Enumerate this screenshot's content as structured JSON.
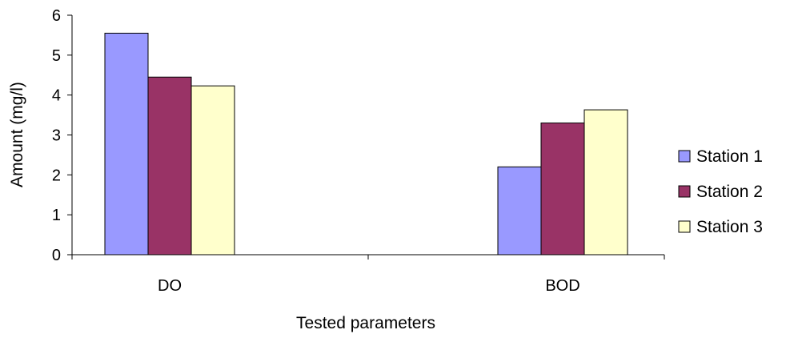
{
  "chart_data": {
    "type": "bar",
    "categories": [
      "DO",
      "BOD"
    ],
    "series": [
      {
        "name": "Station 1",
        "values": [
          5.55,
          2.2
        ],
        "color": "#9999ff"
      },
      {
        "name": "Station 2",
        "values": [
          4.45,
          3.3
        ],
        "color": "#993366"
      },
      {
        "name": "Station 3",
        "values": [
          4.23,
          3.63
        ],
        "color": "#ffffcc"
      }
    ],
    "title": "",
    "xlabel": "Tested parameters",
    "ylabel": "Amount (mg/l)",
    "ylim": [
      0,
      6
    ],
    "yticks": [
      "0",
      "1",
      "2",
      "3",
      "4",
      "5",
      "6"
    ],
    "grid": false,
    "legend_position": "right"
  }
}
